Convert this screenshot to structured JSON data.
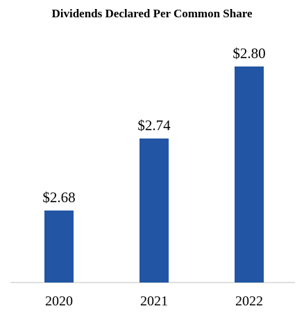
{
  "chart_data": {
    "type": "bar",
    "title": "Dividends Declared Per Common Share",
    "categories": [
      "2020",
      "2021",
      "2022"
    ],
    "values": [
      2.68,
      2.74,
      2.8
    ],
    "value_labels": [
      "$2.68",
      "$2.74",
      "$2.80"
    ],
    "bar_color": "#2255A4",
    "axis_color": "#BFBFBF",
    "grid": false,
    "legend": "none"
  }
}
